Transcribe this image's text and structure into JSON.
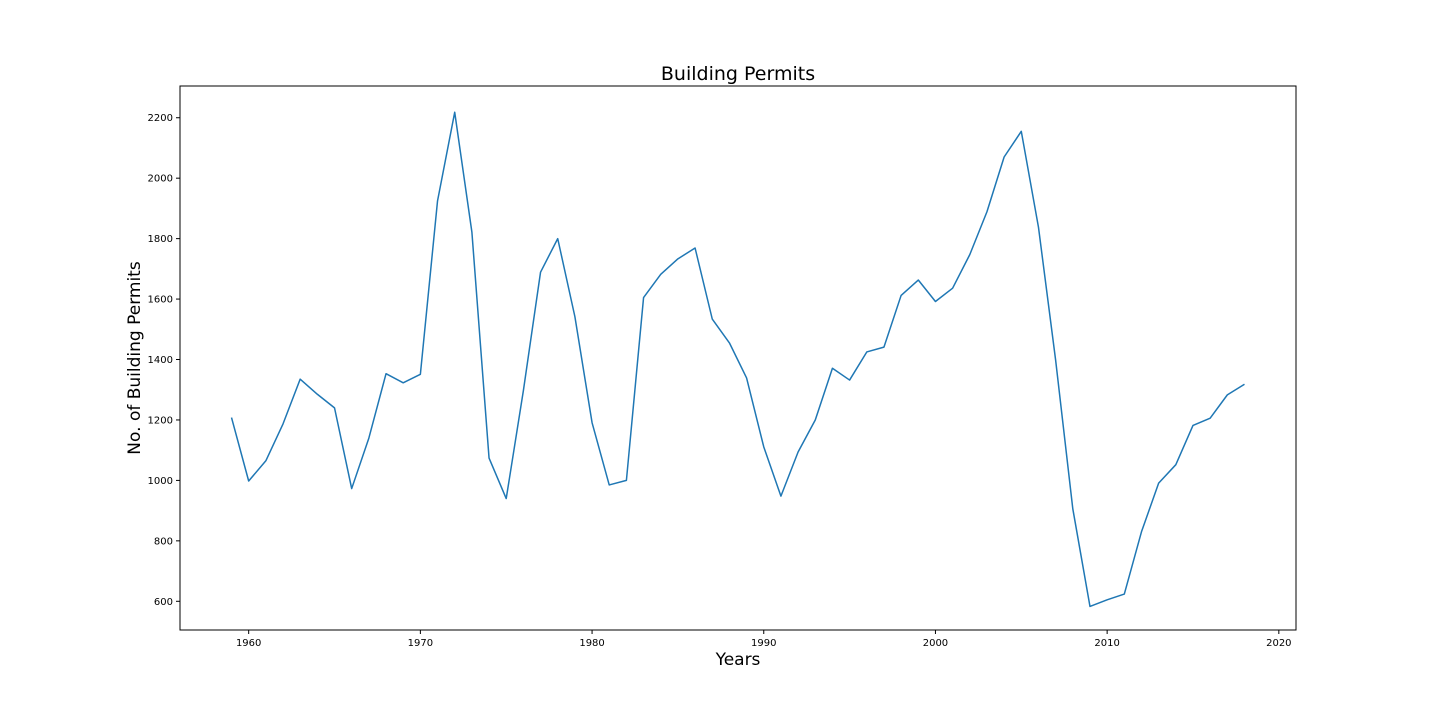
{
  "chart_data": {
    "type": "line",
    "title": "Building Permits",
    "xlabel": "Years",
    "ylabel": "No. of Building Permits",
    "xlim": [
      1956,
      2021
    ],
    "ylim": [
      505,
      2305
    ],
    "xticks": [
      1960,
      1970,
      1980,
      1990,
      2000,
      2010,
      2020
    ],
    "yticks": [
      600,
      800,
      1000,
      1200,
      1400,
      1600,
      1800,
      2000,
      2200
    ],
    "grid": false,
    "line_color": "#1f77b4",
    "series": [
      {
        "x": [
          1959,
          1960,
          1961,
          1962,
          1963,
          1964,
          1965,
          1966,
          1967,
          1968,
          1969,
          1970,
          1971,
          1972,
          1973,
          1974,
          1975,
          1976,
          1977,
          1978,
          1979,
          1980,
          1981,
          1982,
          1983,
          1984,
          1985,
          1986,
          1987,
          1988,
          1989,
          1990,
          1991,
          1992,
          1993,
          1994,
          1995,
          1996,
          1997,
          1998,
          1999,
          2000,
          2001,
          2002,
          2003,
          2004,
          2005,
          2006,
          2007,
          2008,
          2009,
          2010,
          2011,
          2012,
          2013,
          2014,
          2015,
          2016,
          2017,
          2018
        ],
        "values": [
          1208,
          998,
          1065,
          1187,
          1335,
          1285,
          1240,
          973,
          1140,
          1353,
          1323,
          1351,
          1925,
          2218,
          1822,
          1074,
          940,
          1297,
          1689,
          1800,
          1542,
          1191,
          985,
          1000,
          1605,
          1682,
          1733,
          1769,
          1534,
          1455,
          1339,
          1111,
          948,
          1094,
          1200,
          1371,
          1332,
          1425,
          1441,
          1612,
          1663,
          1592,
          1636,
          1747,
          1889,
          2070,
          2155,
          1838,
          1398,
          906,
          583,
          605,
          624,
          830,
          991,
          1052,
          1182,
          1206,
          1283,
          1318
        ]
      }
    ]
  }
}
